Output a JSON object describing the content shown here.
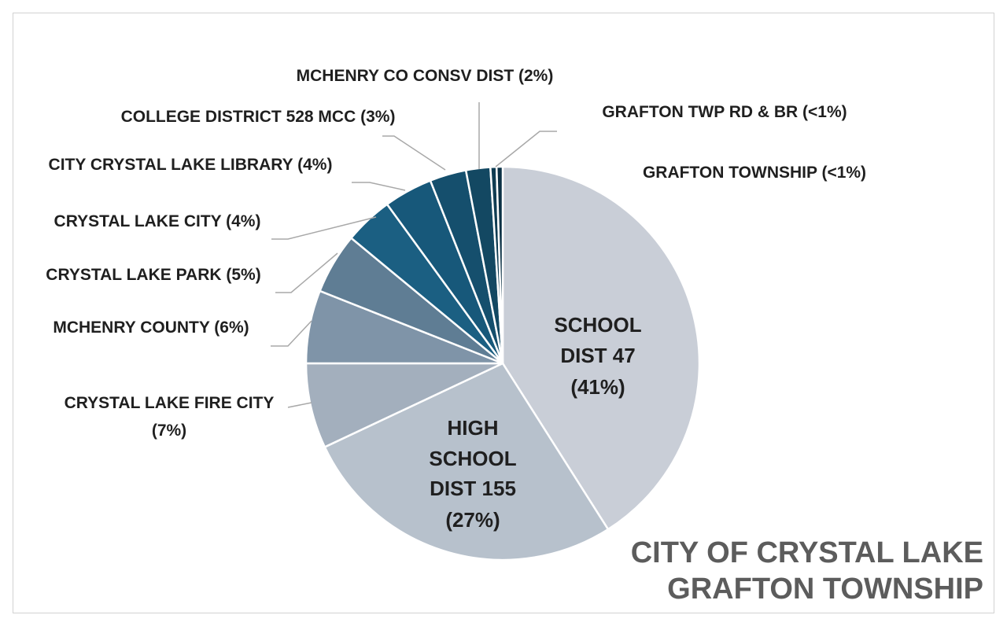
{
  "chart_data": {
    "type": "pie",
    "title_lines": [
      "CITY OF CRYSTAL LAKE",
      "GRAFTON TOWNSHIP"
    ],
    "slices": [
      {
        "label": "SCHOOL DIST 47",
        "pct": "(41%)",
        "value": 41.0,
        "color": "#c9ced7"
      },
      {
        "label": "HIGH SCHOOL DIST 155",
        "pct": "(27%)",
        "value": 27.0,
        "color": "#b7c1cc"
      },
      {
        "label": "CRYSTAL LAKE FIRE CITY",
        "pct": "(7%)",
        "value": 7.0,
        "color": "#a3afbd"
      },
      {
        "label": "MCHENRY COUNTY",
        "pct": "(6%)",
        "value": 6.0,
        "color": "#7f94a8"
      },
      {
        "label": "CRYSTAL LAKE PARK",
        "pct": "(5%)",
        "value": 5.0,
        "color": "#5f7d94"
      },
      {
        "label": "CRYSTAL LAKE CITY",
        "pct": "(4%)",
        "value": 4.0,
        "color": "#1b5f82"
      },
      {
        "label": "CITY CRYSTAL LAKE LIBRARY",
        "pct": "(4%)",
        "value": 4.0,
        "color": "#17587a"
      },
      {
        "label": "COLLEGE DISTRICT 528 MCC",
        "pct": "(3%)",
        "value": 3.0,
        "color": "#154f6d"
      },
      {
        "label": "MCHENRY CO CONSV DIST",
        "pct": "(2%)",
        "value": 2.0,
        "color": "#134862"
      },
      {
        "label": "GRAFTON TWP RD & BR",
        "pct": "(<1%)",
        "value": 0.5,
        "color": "#0f3c52"
      },
      {
        "label": "GRAFTON TOWNSHIP",
        "pct": "(<1%)",
        "value": 0.5,
        "color": "#0b3145"
      }
    ]
  }
}
